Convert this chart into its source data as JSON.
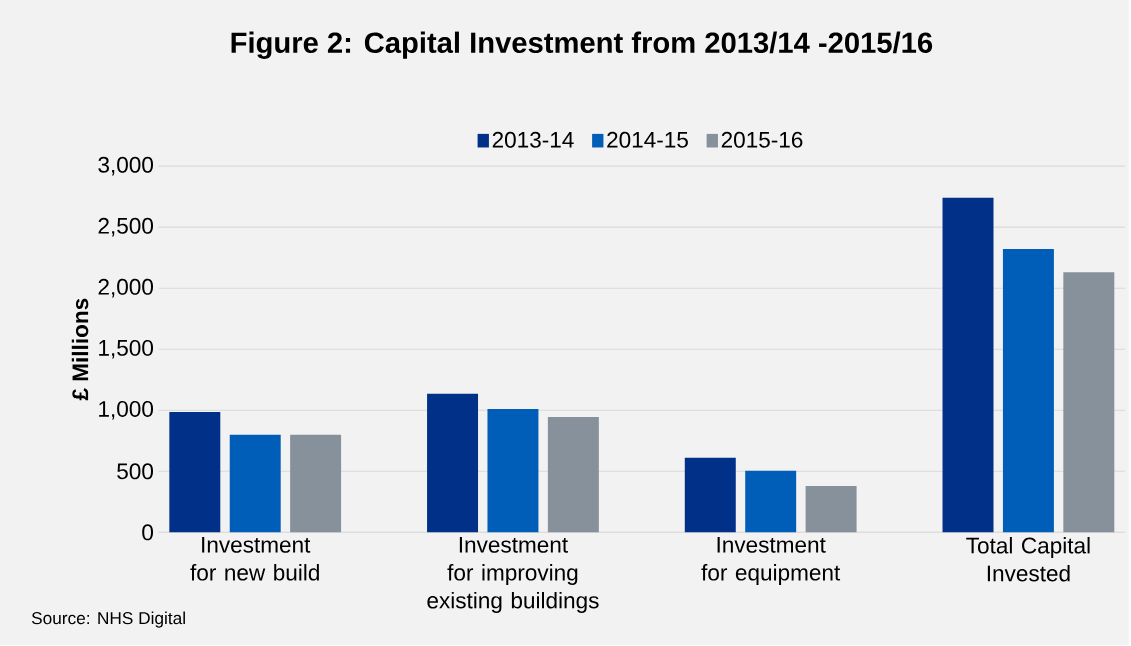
{
  "chart_data": {
    "type": "bar",
    "title": "Figure 2: Capital Investment from 2013/14 -2015/16",
    "ylabel": "£ Millions",
    "categories": [
      "Investment for new build",
      "Investment for improving existing buildings",
      "Investment for equipment",
      "Total Capital Invested"
    ],
    "series": [
      {
        "name": "2013-14",
        "color": "#003087",
        "values": [
          985,
          1135,
          610,
          2740
        ]
      },
      {
        "name": "2014-15",
        "color": "#005eb8",
        "values": [
          800,
          1010,
          505,
          2320
        ]
      },
      {
        "name": "2015-16",
        "color": "#86919b",
        "values": [
          800,
          945,
          380,
          2130
        ]
      }
    ],
    "ylim": [
      0,
      3000
    ],
    "yticks": [
      {
        "value": 0,
        "label": "0"
      },
      {
        "value": 500,
        "label": "500"
      },
      {
        "value": 1000,
        "label": "1,000"
      },
      {
        "value": 1500,
        "label": "1,500"
      },
      {
        "value": 2000,
        "label": "2,000"
      },
      {
        "value": 2500,
        "label": "2,500"
      },
      {
        "value": 3000,
        "label": "3,000"
      }
    ],
    "grid": "y",
    "legend": "top",
    "annotations": [
      "Source: NHS Digital"
    ]
  }
}
